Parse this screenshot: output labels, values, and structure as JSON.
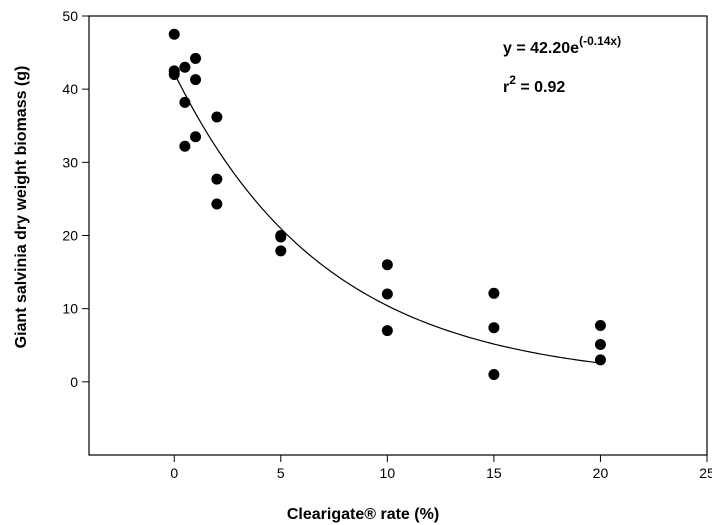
{
  "chart_data": {
    "type": "scatter",
    "xlabel": "Clearigate® rate (%)",
    "ylabel": "Giant salvinia dry weight biomass (g)",
    "xlim": [
      -4,
      25
    ],
    "ylim": [
      -10,
      50
    ],
    "xticks": [
      0,
      5,
      10,
      15,
      20,
      25
    ],
    "yticks": [
      0,
      10,
      20,
      30,
      40,
      50
    ],
    "grid": false,
    "points": [
      {
        "x": 0,
        "y": 47.5
      },
      {
        "x": 0,
        "y": 42.5
      },
      {
        "x": 0,
        "y": 42.0
      },
      {
        "x": 0.5,
        "y": 43.0
      },
      {
        "x": 0.5,
        "y": 38.2
      },
      {
        "x": 0.5,
        "y": 32.2
      },
      {
        "x": 1,
        "y": 44.2
      },
      {
        "x": 1,
        "y": 41.3
      },
      {
        "x": 1,
        "y": 33.5
      },
      {
        "x": 2,
        "y": 36.2
      },
      {
        "x": 2,
        "y": 27.7
      },
      {
        "x": 2,
        "y": 24.3
      },
      {
        "x": 5,
        "y": 20.0
      },
      {
        "x": 5,
        "y": 19.8
      },
      {
        "x": 5,
        "y": 17.9
      },
      {
        "x": 10,
        "y": 16.0
      },
      {
        "x": 10,
        "y": 12.0
      },
      {
        "x": 10,
        "y": 7.0
      },
      {
        "x": 15,
        "y": 12.1
      },
      {
        "x": 15,
        "y": 7.4
      },
      {
        "x": 15,
        "y": 1.0
      },
      {
        "x": 20,
        "y": 7.7
      },
      {
        "x": 20,
        "y": 5.1
      },
      {
        "x": 20,
        "y": 3.0
      }
    ],
    "fit": {
      "type": "exponential",
      "a": 42.2,
      "b": -0.14,
      "x_range": [
        0,
        20
      ]
    },
    "annotation": {
      "eq_prefix": "y = 42.20e",
      "eq_exponent": "(-0.14x)",
      "r2_prefix": "r",
      "r2_exponent": "2",
      "r2_suffix": " = 0.92"
    }
  }
}
